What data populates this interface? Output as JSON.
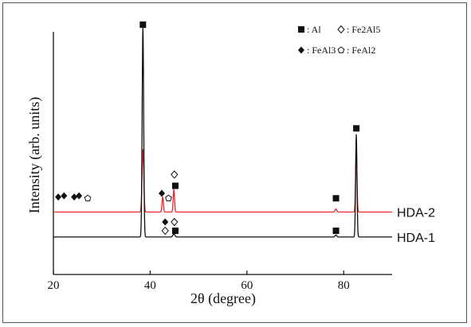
{
  "chart_data": {
    "type": "line",
    "title": "",
    "xlabel": "2θ (degree)",
    "ylabel": "Intensity (arb. units)",
    "xlim": [
      20,
      90
    ],
    "ylim": [
      0,
      100
    ],
    "xticks": [
      "20",
      "40",
      "60",
      "80"
    ],
    "grid": false,
    "legend_position": "top-right",
    "legend": [
      {
        "marker": "filled-square",
        "text": ": Al"
      },
      {
        "marker": "open-diamond",
        "text": ": Fe2Al5"
      },
      {
        "marker": "filled-diamond",
        "text": ": FeAl3"
      },
      {
        "marker": "open-pentagon",
        "text": ": FeAl2"
      }
    ],
    "series": [
      {
        "name": "HDA-2",
        "color": "#e8262b",
        "baseline": 25,
        "peaks": [
          {
            "x": 38.5,
            "y": 25,
            "width": 0.25
          },
          {
            "x": 42.6,
            "y": 6,
            "width": 0.2
          },
          {
            "x": 44.9,
            "y": 9,
            "width": 0.2
          },
          {
            "x": 78.4,
            "y": 1.2,
            "width": 0.25
          },
          {
            "x": 82.6,
            "y": 25,
            "width": 0.2
          }
        ]
      },
      {
        "name": "HDA-1",
        "color": "#111111",
        "baseline": 15,
        "peaks": [
          {
            "x": 38.5,
            "y": 84,
            "width": 0.22
          },
          {
            "x": 44.9,
            "y": 1.2,
            "width": 0.3
          },
          {
            "x": 78.4,
            "y": 0.8,
            "width": 0.25
          },
          {
            "x": 82.6,
            "y": 41,
            "width": 0.2
          }
        ]
      }
    ],
    "annotations": [
      {
        "phase": "Al",
        "x": 38.5,
        "y": 100
      },
      {
        "phase": "Al",
        "x": 82.6,
        "y": 58.5
      },
      {
        "phase": "FeAl3",
        "x": 21.0,
        "y": 31
      },
      {
        "phase": "FeAl3",
        "x": 22.2,
        "y": 31.5
      },
      {
        "phase": "FeAl3",
        "x": 24.3,
        "y": 31
      },
      {
        "phase": "FeAl3",
        "x": 25.3,
        "y": 31.5
      },
      {
        "phase": "FeAl2",
        "x": 27.1,
        "y": 30.5
      },
      {
        "phase": "FeAl3",
        "x": 42.4,
        "y": 32.5
      },
      {
        "phase": "FeAl2",
        "x": 43.8,
        "y": 30.5
      },
      {
        "phase": "Al",
        "x": 45.2,
        "y": 35.5
      },
      {
        "phase": "Fe2Al5",
        "x": 45.0,
        "y": 40
      },
      {
        "phase": "Al",
        "x": 78.4,
        "y": 30.5
      },
      {
        "phase": "FeAl3",
        "x": 43.1,
        "y": 21
      },
      {
        "phase": "Fe2Al5",
        "x": 45.0,
        "y": 21
      },
      {
        "phase": "Fe2Al5",
        "x": 43.1,
        "y": 17.5
      },
      {
        "phase": "Al",
        "x": 45.2,
        "y": 17.5
      },
      {
        "phase": "Al",
        "x": 78.4,
        "y": 17.5
      }
    ]
  }
}
